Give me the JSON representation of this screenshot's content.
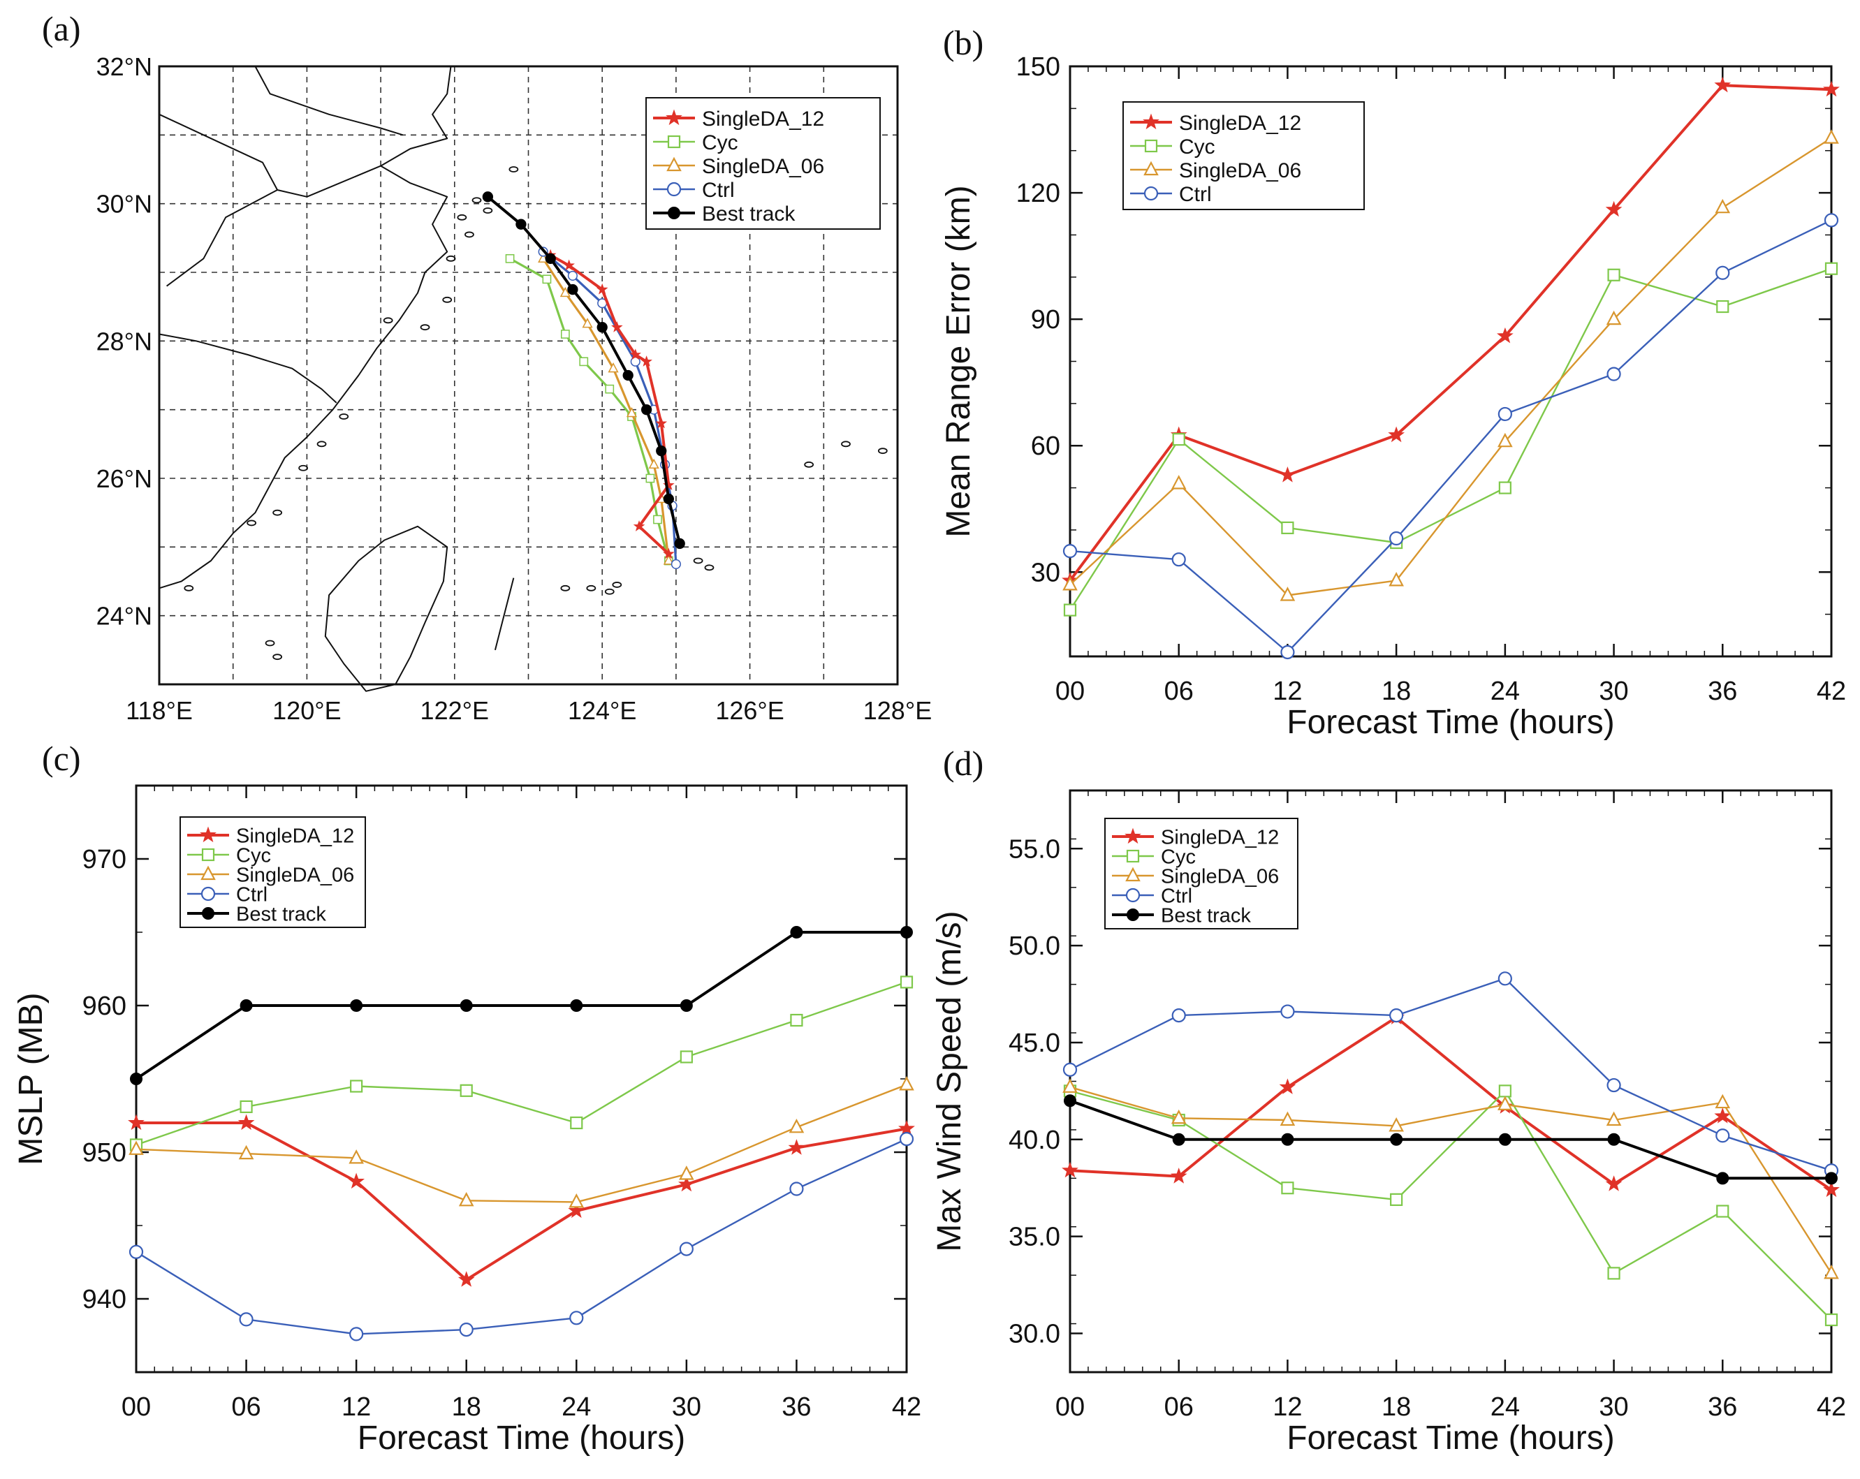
{
  "colors": {
    "SingleDA_12": "#e03228",
    "Cyc": "#7ec84a",
    "SingleDA_06": "#d8962e",
    "Ctrl": "#3a5fb8",
    "Best track": "#000000"
  },
  "chart_data": [
    {
      "panel": "(a)",
      "type": "line",
      "title": "",
      "xlabel": "",
      "ylabel": "",
      "xlim": [
        118,
        128
      ],
      "ylim": [
        23,
        32
      ],
      "x_ticks": [
        "118°E",
        "120°E",
        "122°E",
        "124°E",
        "126°E",
        "128°E"
      ],
      "y_ticks": [
        "24°N",
        "26°N",
        "28°N",
        "30°N",
        "32°N"
      ],
      "legend": {
        "position": "top-right",
        "entries": [
          "SingleDA_12",
          "Cyc",
          "SingleDA_06",
          "Ctrl",
          "Best track"
        ]
      },
      "series": [
        {
          "name": "Best track",
          "marker": "dot",
          "points": [
            [
              125.05,
              25.05
            ],
            [
              124.9,
              25.7
            ],
            [
              124.8,
              26.4
            ],
            [
              124.6,
              27.0
            ],
            [
              124.35,
              27.5
            ],
            [
              124.0,
              28.2
            ],
            [
              123.6,
              28.75
            ],
            [
              123.3,
              29.2
            ],
            [
              122.9,
              29.7
            ],
            [
              122.45,
              30.1
            ]
          ]
        },
        {
          "name": "Ctrl",
          "marker": "circle",
          "points": [
            [
              125.0,
              24.75
            ],
            [
              124.95,
              25.6
            ],
            [
              124.85,
              26.2
            ],
            [
              124.7,
              27.0
            ],
            [
              124.45,
              27.7
            ],
            [
              124.0,
              28.55
            ],
            [
              123.6,
              28.95
            ],
            [
              123.2,
              29.3
            ]
          ]
        },
        {
          "name": "SingleDA_06",
          "marker": "triangle",
          "points": [
            [
              124.9,
              24.8
            ],
            [
              124.8,
              25.7
            ],
            [
              124.7,
              26.2
            ],
            [
              124.4,
              26.95
            ],
            [
              124.15,
              27.6
            ],
            [
              123.8,
              28.25
            ],
            [
              123.5,
              28.7
            ],
            [
              123.2,
              29.2
            ]
          ]
        },
        {
          "name": "Cyc",
          "marker": "square",
          "points": [
            [
              124.9,
              24.8
            ],
            [
              124.75,
              25.4
            ],
            [
              124.65,
              26.0
            ],
            [
              124.4,
              26.9
            ],
            [
              124.1,
              27.3
            ],
            [
              123.75,
              27.7
            ],
            [
              123.5,
              28.1
            ],
            [
              123.25,
              28.9
            ],
            [
              122.75,
              29.2
            ]
          ]
        },
        {
          "name": "SingleDA_12",
          "marker": "star",
          "points": [
            [
              124.9,
              24.9
            ],
            [
              124.5,
              25.3
            ],
            [
              124.9,
              25.9
            ],
            [
              124.8,
              26.8
            ],
            [
              124.6,
              27.7
            ],
            [
              124.45,
              27.8
            ],
            [
              124.2,
              28.2
            ],
            [
              124.0,
              28.75
            ],
            [
              123.55,
              29.1
            ],
            [
              123.3,
              29.25
            ]
          ]
        }
      ]
    },
    {
      "panel": "(b)",
      "type": "line",
      "xlabel": "Forecast Time (hours)",
      "ylabel": "Mean Range Error (km)",
      "x": [
        0,
        6,
        12,
        18,
        24,
        30,
        36,
        42
      ],
      "x_ticks": [
        "00",
        "06",
        "12",
        "18",
        "24",
        "30",
        "36",
        "42"
      ],
      "ylim": [
        10,
        150
      ],
      "y_ticks": [
        "30",
        "60",
        "90",
        "120",
        "150"
      ],
      "legend": {
        "position": "top-left",
        "entries": [
          "SingleDA_12",
          "Cyc",
          "SingleDA_06",
          "Ctrl"
        ]
      },
      "series": [
        {
          "name": "SingleDA_12",
          "marker": "star",
          "values": [
            28,
            62.5,
            53,
            62.5,
            86,
            116,
            145.5,
            144.5
          ]
        },
        {
          "name": "Cyc",
          "marker": "square",
          "values": [
            21,
            61.5,
            40.5,
            37,
            50,
            100.5,
            93,
            102
          ]
        },
        {
          "name": "SingleDA_06",
          "marker": "triangle",
          "values": [
            27,
            51,
            24.5,
            28,
            61,
            90,
            116.5,
            133
          ]
        },
        {
          "name": "Ctrl",
          "marker": "circle",
          "values": [
            35,
            33,
            11,
            38,
            67.5,
            77,
            101,
            113.5
          ]
        }
      ]
    },
    {
      "panel": "(c)",
      "type": "line",
      "xlabel": "Forecast Time (hours)",
      "ylabel": "MSLP (MB)",
      "x": [
        0,
        6,
        12,
        18,
        24,
        30,
        36,
        42
      ],
      "x_ticks": [
        "00",
        "06",
        "12",
        "18",
        "24",
        "30",
        "36",
        "42"
      ],
      "ylim": [
        935,
        975
      ],
      "y_ticks": [
        "940",
        "950",
        "960",
        "970"
      ],
      "legend": {
        "position": "top-left",
        "entries": [
          "SingleDA_12",
          "Cyc",
          "SingleDA_06",
          "Ctrl",
          "Best track"
        ]
      },
      "series": [
        {
          "name": "SingleDA_12",
          "marker": "star",
          "values": [
            952,
            952,
            948,
            941.3,
            946,
            947.8,
            950.3,
            951.6
          ]
        },
        {
          "name": "Cyc",
          "marker": "square",
          "values": [
            950.5,
            953.1,
            954.5,
            954.2,
            952,
            956.5,
            959,
            961.6
          ]
        },
        {
          "name": "SingleDA_06",
          "marker": "triangle",
          "values": [
            950.2,
            949.9,
            949.6,
            946.7,
            946.6,
            948.5,
            951.7,
            954.6
          ]
        },
        {
          "name": "Ctrl",
          "marker": "circle",
          "values": [
            943.2,
            938.6,
            937.6,
            937.9,
            938.7,
            943.4,
            947.5,
            950.9
          ]
        },
        {
          "name": "Best track",
          "marker": "dot",
          "values": [
            955,
            960,
            960,
            960,
            960,
            960,
            965,
            965
          ]
        }
      ]
    },
    {
      "panel": "(d)",
      "type": "line",
      "xlabel": "Forecast Time (hours)",
      "ylabel": "Max Wind Speed (m/s)",
      "x": [
        0,
        6,
        12,
        18,
        24,
        30,
        36,
        42
      ],
      "x_ticks": [
        "00",
        "06",
        "12",
        "18",
        "24",
        "30",
        "36",
        "42"
      ],
      "ylim": [
        28,
        58
      ],
      "y_ticks": [
        "30.0",
        "35.0",
        "40.0",
        "45.0",
        "50.0",
        "55.0"
      ],
      "legend": {
        "position": "top-left",
        "entries": [
          "SingleDA_12",
          "Cyc",
          "SingleDA_06",
          "Ctrl",
          "Best track"
        ]
      },
      "series": [
        {
          "name": "SingleDA_12",
          "marker": "star",
          "values": [
            38.4,
            38.1,
            42.7,
            46.3,
            41.7,
            37.7,
            41.2,
            37.4
          ]
        },
        {
          "name": "Cyc",
          "marker": "square",
          "values": [
            42.5,
            41,
            37.5,
            36.9,
            42.5,
            33.1,
            36.3,
            30.7
          ]
        },
        {
          "name": "SingleDA_06",
          "marker": "triangle",
          "values": [
            42.7,
            41.1,
            41,
            40.7,
            41.8,
            41,
            41.9,
            33.1
          ]
        },
        {
          "name": "Ctrl",
          "marker": "circle",
          "values": [
            43.6,
            46.4,
            46.6,
            46.4,
            48.3,
            42.8,
            40.2,
            38.4
          ]
        },
        {
          "name": "Best track",
          "marker": "dot",
          "values": [
            42,
            40,
            40,
            40,
            40,
            40,
            38,
            38
          ]
        }
      ]
    }
  ]
}
